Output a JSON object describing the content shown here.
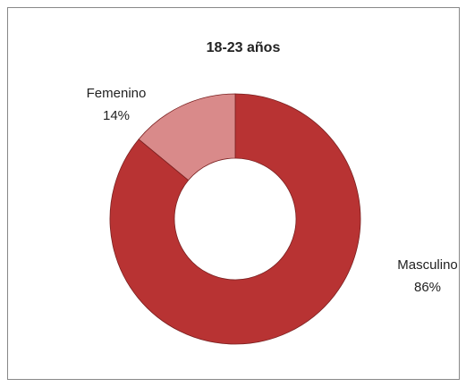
{
  "chart_data": {
    "type": "doughnut",
    "title": "18-23 años",
    "categories": [
      "Masculino",
      "Femenino"
    ],
    "values": [
      86,
      14
    ],
    "value_labels": [
      "86%",
      "14%"
    ],
    "colors": [
      "#b83333",
      "#d98a8a"
    ]
  }
}
